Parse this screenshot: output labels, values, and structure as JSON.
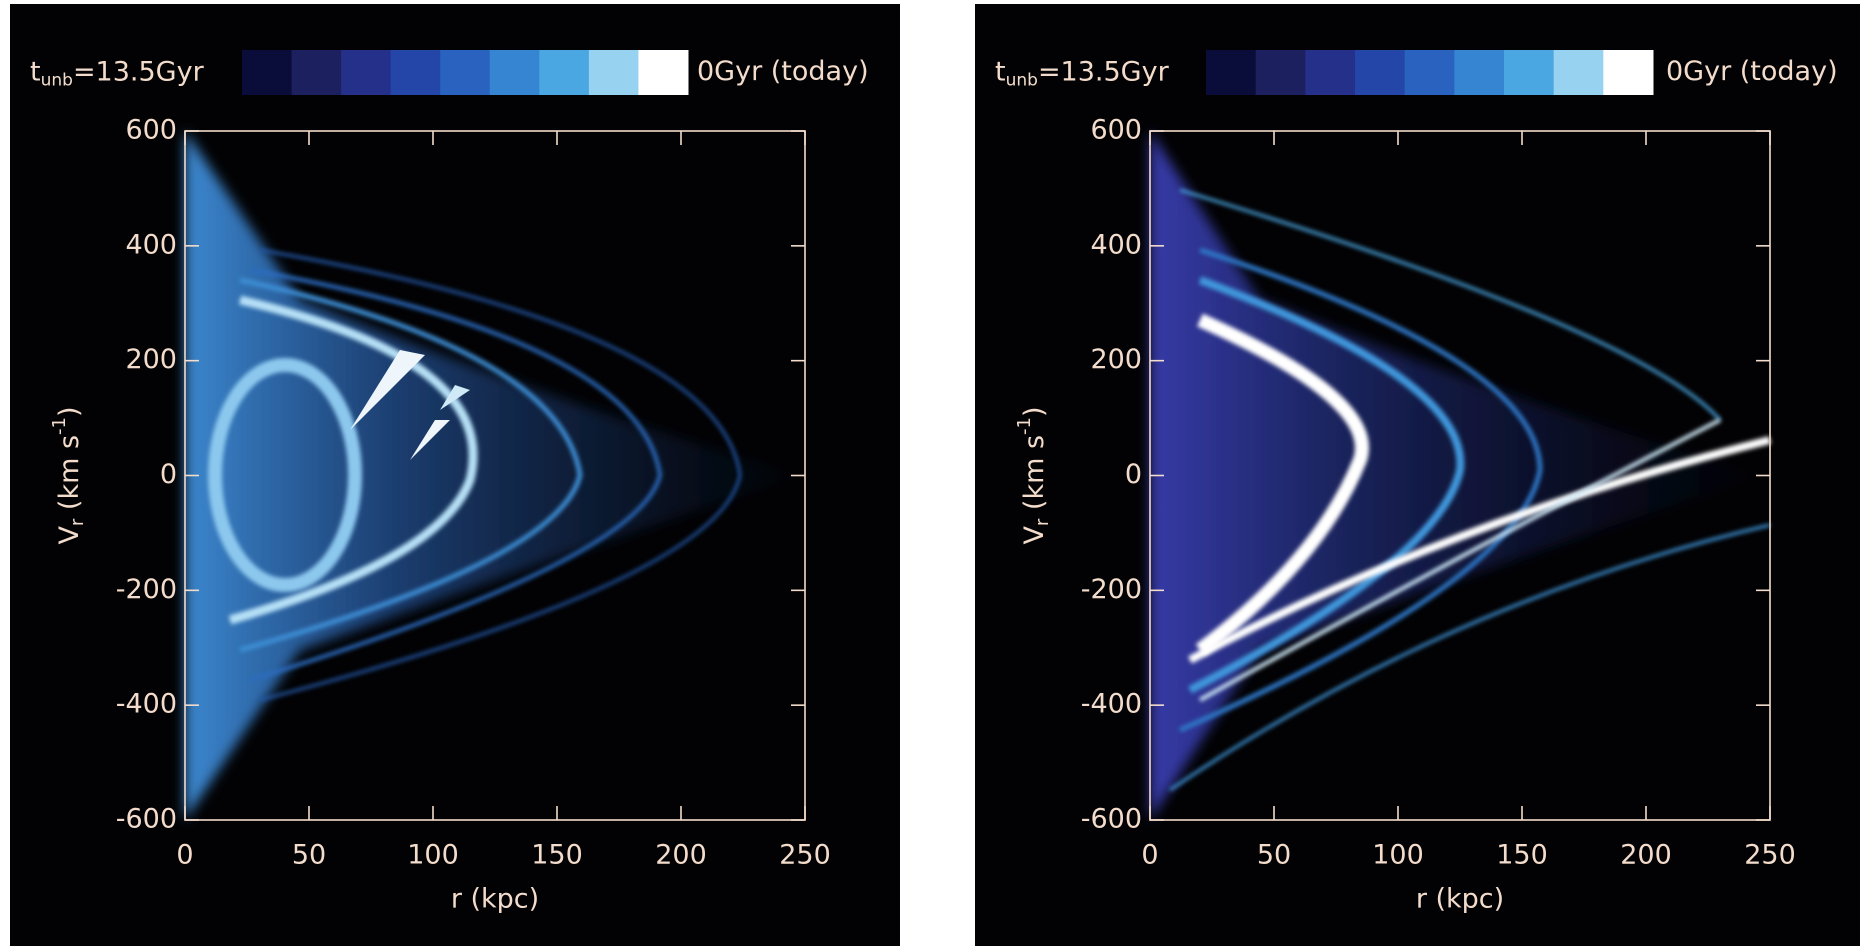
{
  "chart_data": [
    {
      "type": "density",
      "colorbar": {
        "colors": [
          "#0a0d3a",
          "#1c205f",
          "#24308a",
          "#2446a8",
          "#2a62c0",
          "#3585d2",
          "#4aa7e2",
          "#98d2f1",
          "#ffffff"
        ],
        "label_start": {
          "main": "t",
          "sub": "unb",
          "rest": "=13.5Gyr"
        },
        "label_end": "0Gyr (today)"
      },
      "xlabel": "r (kpc)",
      "ylabel": {
        "main": "V",
        "sub": "r",
        "mid": " (km s",
        "sup": "-1",
        "end": ")"
      },
      "xlim": [
        0,
        250
      ],
      "xticks": [
        0,
        50,
        100,
        150,
        200,
        250
      ],
      "ylim": [
        -600,
        600
      ],
      "yticks": [
        -600,
        -400,
        -200,
        0,
        200,
        400,
        600
      ]
    },
    {
      "type": "density",
      "colorbar": {
        "colors": [
          "#0a0d3a",
          "#1c205f",
          "#24308a",
          "#2446a8",
          "#2a62c0",
          "#3585d2",
          "#4aa7e2",
          "#98d2f1",
          "#ffffff"
        ],
        "label_start": {
          "main": "t",
          "sub": "unb",
          "rest": "=13.5Gyr"
        },
        "label_end": "0Gyr (today)"
      },
      "xlabel": "r (kpc)",
      "ylabel": {
        "main": "V",
        "sub": "r",
        "mid": " (km s",
        "sup": "-1",
        "end": ")"
      },
      "xlim": [
        0,
        250
      ],
      "xticks": [
        0,
        50,
        100,
        150,
        200,
        250
      ],
      "ylim": [
        -600,
        600
      ],
      "yticks": [
        -600,
        -400,
        -200,
        0,
        200,
        400,
        600
      ]
    }
  ]
}
